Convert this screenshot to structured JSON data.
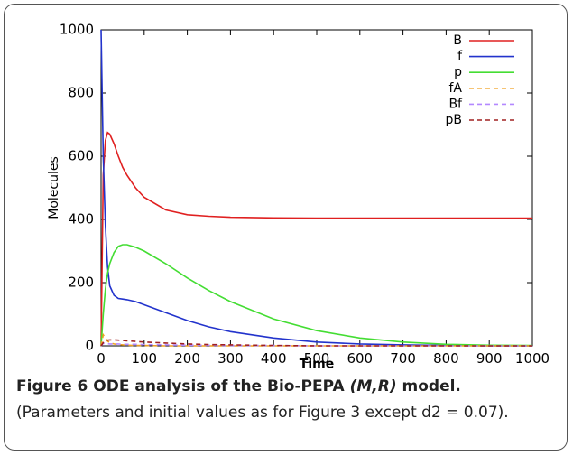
{
  "chart_data": {
    "type": "line",
    "xlabel": "Time",
    "ylabel": "Molecules",
    "x": [
      0,
      5,
      10,
      15,
      20,
      30,
      40,
      50,
      60,
      80,
      100,
      150,
      200,
      250,
      300,
      400,
      500,
      600,
      700,
      800,
      900,
      1000
    ],
    "series": [
      {
        "name": "B",
        "color": "#e02020",
        "style": "solid",
        "values": [
          0,
          540,
          650,
          675,
          670,
          640,
          600,
          565,
          540,
          500,
          470,
          430,
          415,
          410,
          407,
          405,
          404,
          404,
          404,
          404,
          404,
          404
        ]
      },
      {
        "name": "f",
        "color": "#2233cc",
        "style": "solid",
        "values": [
          1000,
          600,
          380,
          250,
          190,
          160,
          150,
          148,
          146,
          140,
          130,
          105,
          80,
          60,
          45,
          25,
          12,
          6,
          3,
          1,
          0,
          0
        ]
      },
      {
        "name": "p",
        "color": "#44dd33",
        "style": "solid",
        "values": [
          0,
          100,
          180,
          230,
          260,
          295,
          315,
          320,
          320,
          312,
          300,
          260,
          215,
          175,
          140,
          85,
          48,
          25,
          12,
          5,
          2,
          1
        ]
      },
      {
        "name": "fA",
        "color": "#f0a020",
        "style": "dashed",
        "values": [
          0,
          35,
          25,
          15,
          10,
          6,
          4,
          3,
          2,
          1,
          1,
          0,
          0,
          0,
          0,
          0,
          0,
          0,
          0,
          0,
          0,
          0
        ]
      },
      {
        "name": "Bf",
        "color": "#b388ff",
        "style": "dashed",
        "values": [
          0,
          8,
          7,
          7,
          6,
          6,
          6,
          5,
          5,
          5,
          4,
          3,
          2,
          2,
          1,
          1,
          0,
          0,
          0,
          0,
          0,
          0
        ]
      },
      {
        "name": "pB",
        "color": "#a02020",
        "style": "dashed",
        "values": [
          0,
          10,
          15,
          18,
          19,
          19,
          18,
          17,
          16,
          14,
          12,
          9,
          6,
          4,
          3,
          1,
          0,
          0,
          0,
          0,
          0,
          0
        ]
      }
    ],
    "xlim": [
      0,
      1000
    ],
    "xticks": [
      0,
      100,
      200,
      300,
      400,
      500,
      600,
      700,
      800,
      900,
      1000
    ],
    "ylim": [
      0,
      1000
    ],
    "yticks": [
      0,
      200,
      400,
      600,
      800,
      1000
    ],
    "legend": "top-right"
  },
  "caption": {
    "label": "Figure 6",
    "title_pre": "ODE analysis of the Bio-PEPA ",
    "title_italic": "(M,R)",
    "title_post": " model.",
    "note": "(Parameters and initial values as for Figure 3 except d2 = 0.07)."
  }
}
